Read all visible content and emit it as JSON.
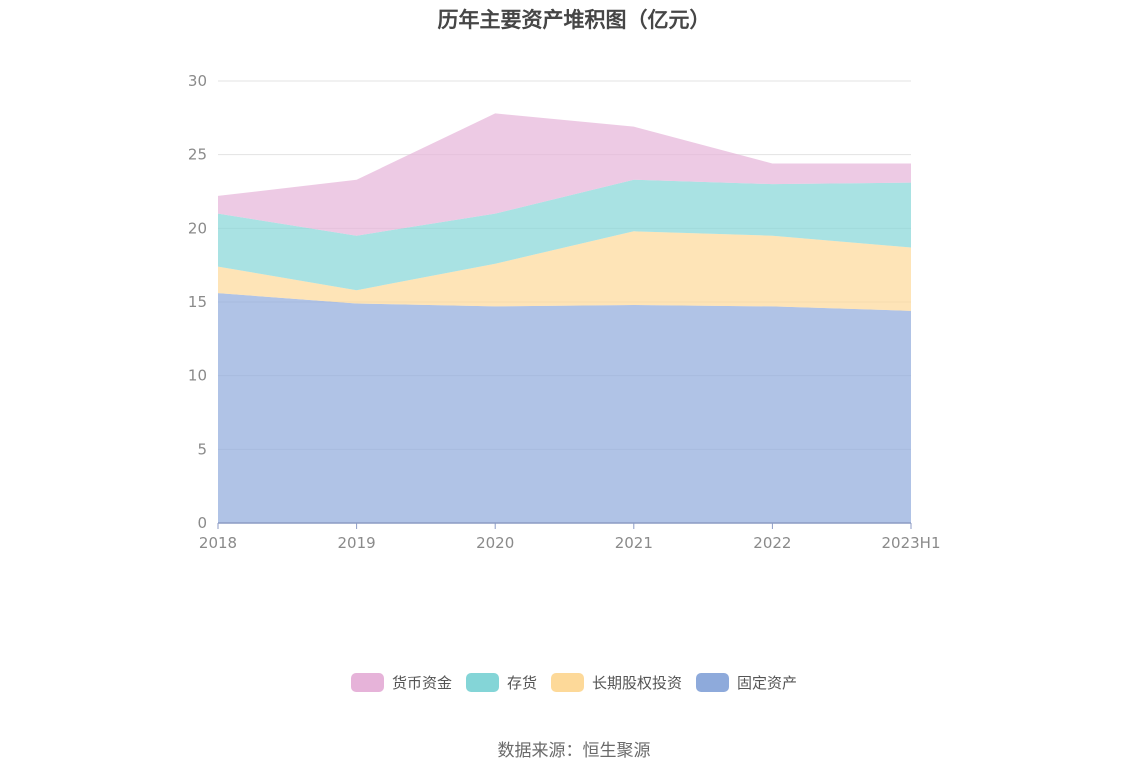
{
  "chart_data": {
    "type": "area",
    "stacked": true,
    "title": "历年主要资产堆积图（亿元）",
    "categories": [
      "2018",
      "2019",
      "2020",
      "2021",
      "2022",
      "2023H1"
    ],
    "ylim": [
      0,
      30
    ],
    "yticks": [
      0,
      5,
      10,
      15,
      20,
      25,
      30
    ],
    "grid": true,
    "legend_position": "bottom",
    "series": [
      {
        "name": "固定资产",
        "color": "#8eaadb",
        "values": [
          15.6,
          14.9,
          14.7,
          14.8,
          14.7,
          14.4
        ]
      },
      {
        "name": "长期股权投资",
        "color": "#fdd999",
        "values": [
          1.8,
          0.9,
          2.9,
          5.0,
          4.8,
          4.3
        ]
      },
      {
        "name": "存货",
        "color": "#84d5d7",
        "values": [
          3.6,
          3.7,
          3.4,
          3.5,
          3.5,
          4.4
        ]
      },
      {
        "name": "货币资金",
        "color": "#e6b3d9",
        "values": [
          1.2,
          3.8,
          6.8,
          3.6,
          1.4,
          1.3
        ]
      }
    ],
    "legend_order": [
      "货币资金",
      "存货",
      "长期股权投资",
      "固定资产"
    ]
  },
  "source": "数据来源：恒生聚源"
}
